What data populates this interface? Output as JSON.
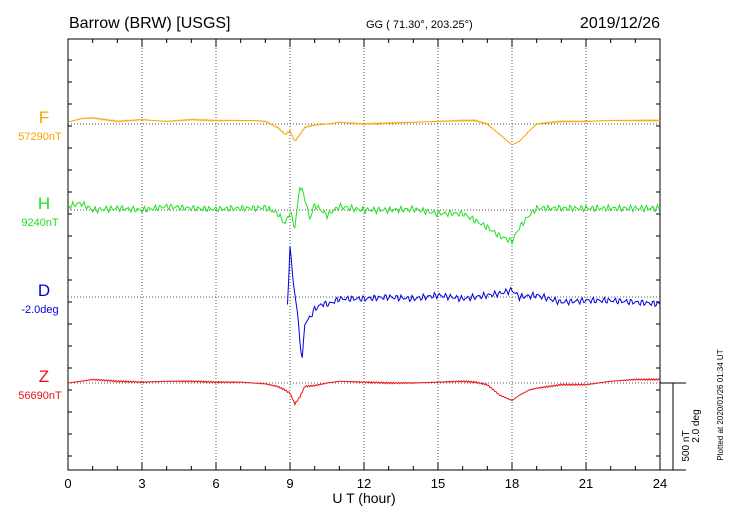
{
  "header": {
    "station": "Barrow (BRW)  [USGS]",
    "coords": "GG ( 71.30°, 203.25°)",
    "date": "2019/12/26"
  },
  "footer": {
    "plotted": "Plotted at 2020/01/26 01:34  UT"
  },
  "scale": {
    "nt": "500 nT",
    "deg": "2.0 deg"
  },
  "chart_data": {
    "type": "line",
    "title": "Barrow (BRW)  [USGS]",
    "xlabel": "U T (hour)",
    "ylabel": "",
    "xlim": [
      0,
      24
    ],
    "x_ticks": [
      "0",
      "3",
      "6",
      "9",
      "12",
      "15",
      "18",
      "21",
      "24"
    ],
    "grid": true,
    "scale_bar": "500 nT / 2.0 deg",
    "series": [
      {
        "name": "F",
        "baseline_label": "57290nT",
        "color": "#f5a500",
        "baseline_nt": 57290,
        "x": [
          0,
          0.5,
          1,
          2,
          3,
          4,
          5,
          6,
          7,
          7.5,
          8,
          8.5,
          8.8,
          9,
          9.2,
          9.4,
          9.6,
          10,
          10.5,
          11,
          12,
          13,
          14,
          15,
          16,
          16.5,
          17,
          17.5,
          18,
          18.3,
          18.7,
          19,
          20,
          21,
          22,
          23,
          24
        ],
        "y": [
          10,
          30,
          35,
          15,
          25,
          15,
          25,
          20,
          20,
          20,
          15,
          -20,
          -60,
          -40,
          -100,
          -60,
          -20,
          -5,
          0,
          10,
          0,
          5,
          10,
          15,
          20,
          20,
          0,
          -60,
          -120,
          -100,
          -40,
          0,
          15,
          15,
          20,
          20,
          20
        ]
      },
      {
        "name": "H",
        "baseline_label": "9240nT",
        "color": "#22e022",
        "baseline_nt": 9240,
        "x": [
          0,
          0.5,
          1,
          2,
          3,
          4,
          5,
          6,
          7,
          7.5,
          8,
          8.5,
          8.8,
          9,
          9.2,
          9.4,
          9.6,
          9.8,
          10,
          10.5,
          11,
          12,
          13,
          14,
          15,
          16,
          16.5,
          17,
          17.5,
          18,
          18.3,
          18.7,
          19,
          20,
          21,
          22,
          23,
          24
        ],
        "y": [
          20,
          40,
          0,
          10,
          0,
          20,
          10,
          5,
          10,
          10,
          15,
          -20,
          -80,
          -10,
          -100,
          140,
          70,
          -50,
          30,
          -30,
          20,
          0,
          0,
          5,
          -20,
          -20,
          -60,
          -100,
          -150,
          -180,
          -100,
          -30,
          10,
          10,
          10,
          10,
          10,
          10
        ]
      },
      {
        "name": "D",
        "baseline_label": "-2.0deg",
        "color": "#0000dd",
        "baseline_nt": -2.0,
        "x": [
          8.9,
          9,
          9.1,
          9.2,
          9.3,
          9.4,
          9.5,
          9.6,
          9.8,
          10,
          10.3,
          10.6,
          11,
          12,
          13,
          14,
          15,
          16,
          17,
          17.5,
          18,
          18.3,
          19,
          20,
          21,
          22,
          23,
          24
        ],
        "y": [
          -60,
          310,
          120,
          20,
          -90,
          -250,
          -360,
          -150,
          -120,
          -70,
          -40,
          -40,
          -10,
          -10,
          0,
          -10,
          10,
          -10,
          10,
          20,
          40,
          0,
          10,
          -30,
          -20,
          -20,
          -30,
          -40
        ]
      },
      {
        "name": "Z",
        "baseline_label": "56690nT",
        "color": "#ee1111",
        "baseline_nt": 56690,
        "x": [
          0,
          0.5,
          1,
          2,
          3,
          4,
          5,
          6,
          7,
          7.5,
          8,
          8.5,
          8.8,
          9,
          9.2,
          9.4,
          9.6,
          10,
          10.5,
          11,
          12,
          13,
          14,
          15,
          16,
          16.5,
          17,
          17.5,
          18,
          18.3,
          18.7,
          19,
          20,
          21,
          22,
          23,
          24
        ],
        "y": [
          0,
          10,
          20,
          10,
          5,
          10,
          10,
          5,
          5,
          0,
          -5,
          -20,
          -40,
          -60,
          -120,
          -80,
          -20,
          -15,
          0,
          10,
          5,
          0,
          0,
          5,
          10,
          5,
          -10,
          -70,
          -100,
          -70,
          -40,
          -30,
          -10,
          -10,
          10,
          20,
          20
        ]
      }
    ]
  }
}
